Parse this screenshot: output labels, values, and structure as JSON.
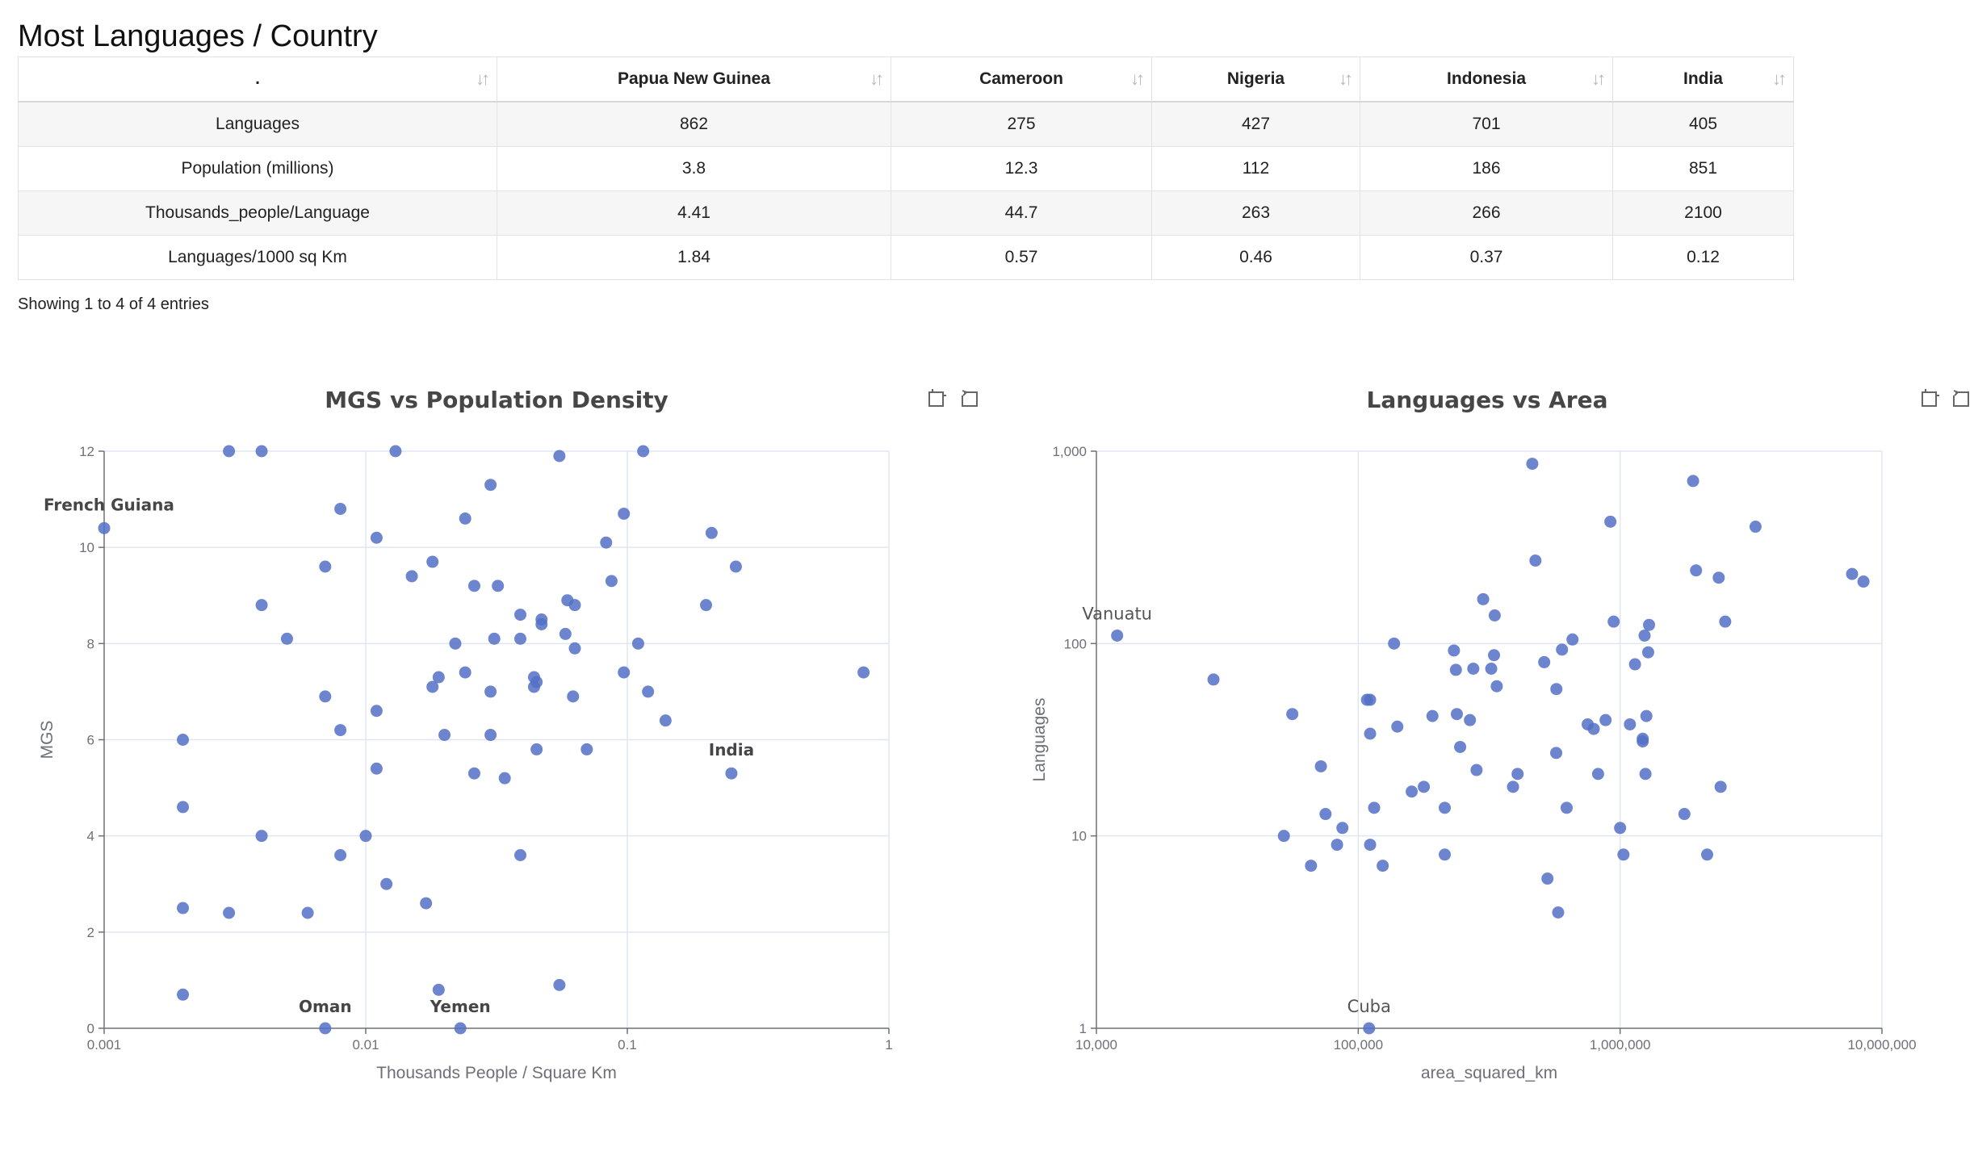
{
  "page_title": "Most Languages / Country",
  "table": {
    "columns": [
      ".",
      "Papua New Guinea",
      "Cameroon",
      "Nigeria",
      "Indonesia",
      "India"
    ],
    "rows": [
      [
        "Languages",
        "862",
        "275",
        "427",
        "701",
        "405"
      ],
      [
        "Population (millions)",
        "3.8",
        "12.3",
        "112",
        "186",
        "851"
      ],
      [
        "Thousands_people/Language",
        "4.41",
        "44.7",
        "263",
        "266",
        "2100"
      ],
      [
        "Languages/1000 sq Km",
        "1.84",
        "0.57",
        "0.46",
        "0.37",
        "0.12"
      ]
    ],
    "info": "Showing 1 to 4 of 4 entries"
  },
  "toolbox_icons": [
    "zoom-icon",
    "restore-icon"
  ],
  "chart_data": [
    {
      "type": "scatter",
      "title": "MGS vs Population Density",
      "xlabel": "Thousands People / Square Km",
      "ylabel": "MGS",
      "x_scale": "log",
      "xlim": [
        0.001,
        1
      ],
      "ylim": [
        0,
        12
      ],
      "x_ticks": [
        "0.001",
        "0.01",
        "0.1",
        "1"
      ],
      "y_ticks": [
        "0",
        "2",
        "4",
        "6",
        "8",
        "10",
        "12"
      ],
      "grid": true,
      "color": "#5470c6",
      "points": [
        [
          0.001,
          10.4
        ],
        [
          0.002,
          6.0
        ],
        [
          0.002,
          4.6
        ],
        [
          0.002,
          2.5
        ],
        [
          0.002,
          0.7
        ],
        [
          0.003,
          12.0
        ],
        [
          0.003,
          2.4
        ],
        [
          0.004,
          12.0
        ],
        [
          0.004,
          8.8
        ],
        [
          0.004,
          4.0
        ],
        [
          0.005,
          8.1
        ],
        [
          0.006,
          2.4
        ],
        [
          0.007,
          9.6
        ],
        [
          0.007,
          6.9
        ],
        [
          0.007,
          0.0
        ],
        [
          0.008,
          10.8
        ],
        [
          0.008,
          6.2
        ],
        [
          0.008,
          3.6
        ],
        [
          0.01,
          4.0
        ],
        [
          0.011,
          10.2
        ],
        [
          0.011,
          6.6
        ],
        [
          0.011,
          5.4
        ],
        [
          0.012,
          3.0
        ],
        [
          0.013,
          12.0
        ],
        [
          0.015,
          9.4
        ],
        [
          0.017,
          2.6
        ],
        [
          0.018,
          9.7
        ],
        [
          0.018,
          7.1
        ],
        [
          0.019,
          7.3
        ],
        [
          0.019,
          0.8
        ],
        [
          0.02,
          6.1
        ],
        [
          0.022,
          8.0
        ],
        [
          0.023,
          0.0
        ],
        [
          0.024,
          10.6
        ],
        [
          0.024,
          7.4
        ],
        [
          0.026,
          9.2
        ],
        [
          0.026,
          5.3
        ],
        [
          0.03,
          11.3
        ],
        [
          0.03,
          7.0
        ],
        [
          0.03,
          6.1
        ],
        [
          0.031,
          8.1
        ],
        [
          0.032,
          9.2
        ],
        [
          0.034,
          5.2
        ],
        [
          0.039,
          8.6
        ],
        [
          0.039,
          8.1
        ],
        [
          0.039,
          3.6
        ],
        [
          0.044,
          7.3
        ],
        [
          0.044,
          7.1
        ],
        [
          0.045,
          7.2
        ],
        [
          0.045,
          5.8
        ],
        [
          0.047,
          8.5
        ],
        [
          0.047,
          8.4
        ],
        [
          0.055,
          11.9
        ],
        [
          0.055,
          0.9
        ],
        [
          0.058,
          8.2
        ],
        [
          0.059,
          8.9
        ],
        [
          0.062,
          6.9
        ],
        [
          0.063,
          8.8
        ],
        [
          0.063,
          7.9
        ],
        [
          0.07,
          5.8
        ],
        [
          0.083,
          10.1
        ],
        [
          0.087,
          9.3
        ],
        [
          0.097,
          10.7
        ],
        [
          0.097,
          7.4
        ],
        [
          0.11,
          8.0
        ],
        [
          0.115,
          12.0
        ],
        [
          0.12,
          7.0
        ],
        [
          0.14,
          6.4
        ],
        [
          0.2,
          8.8
        ],
        [
          0.21,
          10.3
        ],
        [
          0.25,
          5.3
        ],
        [
          0.26,
          9.6
        ],
        [
          0.8,
          7.4
        ]
      ],
      "annotations": [
        {
          "text": "French Guiana",
          "x": 0.001,
          "y": 10.4
        },
        {
          "text": "India",
          "x": 0.25,
          "y": 5.3
        },
        {
          "text": "Oman",
          "x": 0.007,
          "y": 0.0
        },
        {
          "text": "Yemen",
          "x": 0.023,
          "y": 0.0
        }
      ]
    },
    {
      "type": "scatter",
      "title": "Languages vs Area",
      "xlabel": "area_squared_km",
      "ylabel": "Languages",
      "x_scale": "log",
      "y_scale": "log",
      "xlim": [
        10000,
        10000000
      ],
      "ylim": [
        1,
        1000
      ],
      "x_ticks": [
        "10,000",
        "100,000",
        "1,000,000",
        "10,000,000"
      ],
      "y_ticks": [
        "1",
        "10",
        "100",
        "1,000"
      ],
      "grid": true,
      "color": "#5470c6",
      "points": [
        [
          12000,
          110
        ],
        [
          28000,
          65
        ],
        [
          52000,
          10
        ],
        [
          56000,
          43
        ],
        [
          66000,
          7
        ],
        [
          72000,
          23
        ],
        [
          75000,
          13
        ],
        [
          83000,
          9
        ],
        [
          87000,
          11
        ],
        [
          108000,
          51
        ],
        [
          111000,
          51
        ],
        [
          111000,
          34
        ],
        [
          111000,
          9
        ],
        [
          115000,
          14
        ],
        [
          124000,
          7
        ],
        [
          137000,
          100
        ],
        [
          141000,
          37
        ],
        [
          160000,
          17
        ],
        [
          178000,
          18
        ],
        [
          192000,
          42
        ],
        [
          214000,
          14
        ],
        [
          214000,
          8
        ],
        [
          232000,
          92
        ],
        [
          236000,
          73
        ],
        [
          238000,
          43
        ],
        [
          245000,
          29
        ],
        [
          267000,
          40
        ],
        [
          275000,
          74
        ],
        [
          283000,
          22
        ],
        [
          300000,
          170
        ],
        [
          322000,
          74
        ],
        [
          330000,
          87
        ],
        [
          332000,
          140
        ],
        [
          338000,
          60
        ],
        [
          390000,
          18
        ],
        [
          406000,
          21
        ],
        [
          462000,
          860
        ],
        [
          475000,
          270
        ],
        [
          513000,
          80
        ],
        [
          528000,
          6
        ],
        [
          570000,
          27
        ],
        [
          571000,
          58
        ],
        [
          580000,
          4
        ],
        [
          600000,
          93
        ],
        [
          625000,
          14
        ],
        [
          658000,
          105
        ],
        [
          752000,
          38
        ],
        [
          793000,
          36
        ],
        [
          824000,
          21
        ],
        [
          880000,
          40
        ],
        [
          918000,
          430
        ],
        [
          945000,
          130
        ],
        [
          1000000,
          11
        ],
        [
          1030000,
          8
        ],
        [
          1090000,
          38
        ],
        [
          1140000,
          78
        ],
        [
          1220000,
          31
        ],
        [
          1220000,
          32
        ],
        [
          1240000,
          110
        ],
        [
          1250000,
          21
        ],
        [
          1260000,
          42
        ],
        [
          1280000,
          90
        ],
        [
          1290000,
          125
        ],
        [
          1760000,
          13
        ],
        [
          1900000,
          700
        ],
        [
          1950000,
          240
        ],
        [
          2150000,
          8
        ],
        [
          2380000,
          220
        ],
        [
          2420000,
          18
        ],
        [
          2520000,
          130
        ],
        [
          3290000,
          405
        ],
        [
          7690000,
          230
        ],
        [
          8500000,
          210
        ],
        [
          110000,
          1
        ]
      ],
      "annotations": [
        {
          "text": "Vanuatu",
          "x": 12000,
          "y": 110
        },
        {
          "text": "Cuba",
          "x": 110000,
          "y": 1
        }
      ]
    }
  ]
}
